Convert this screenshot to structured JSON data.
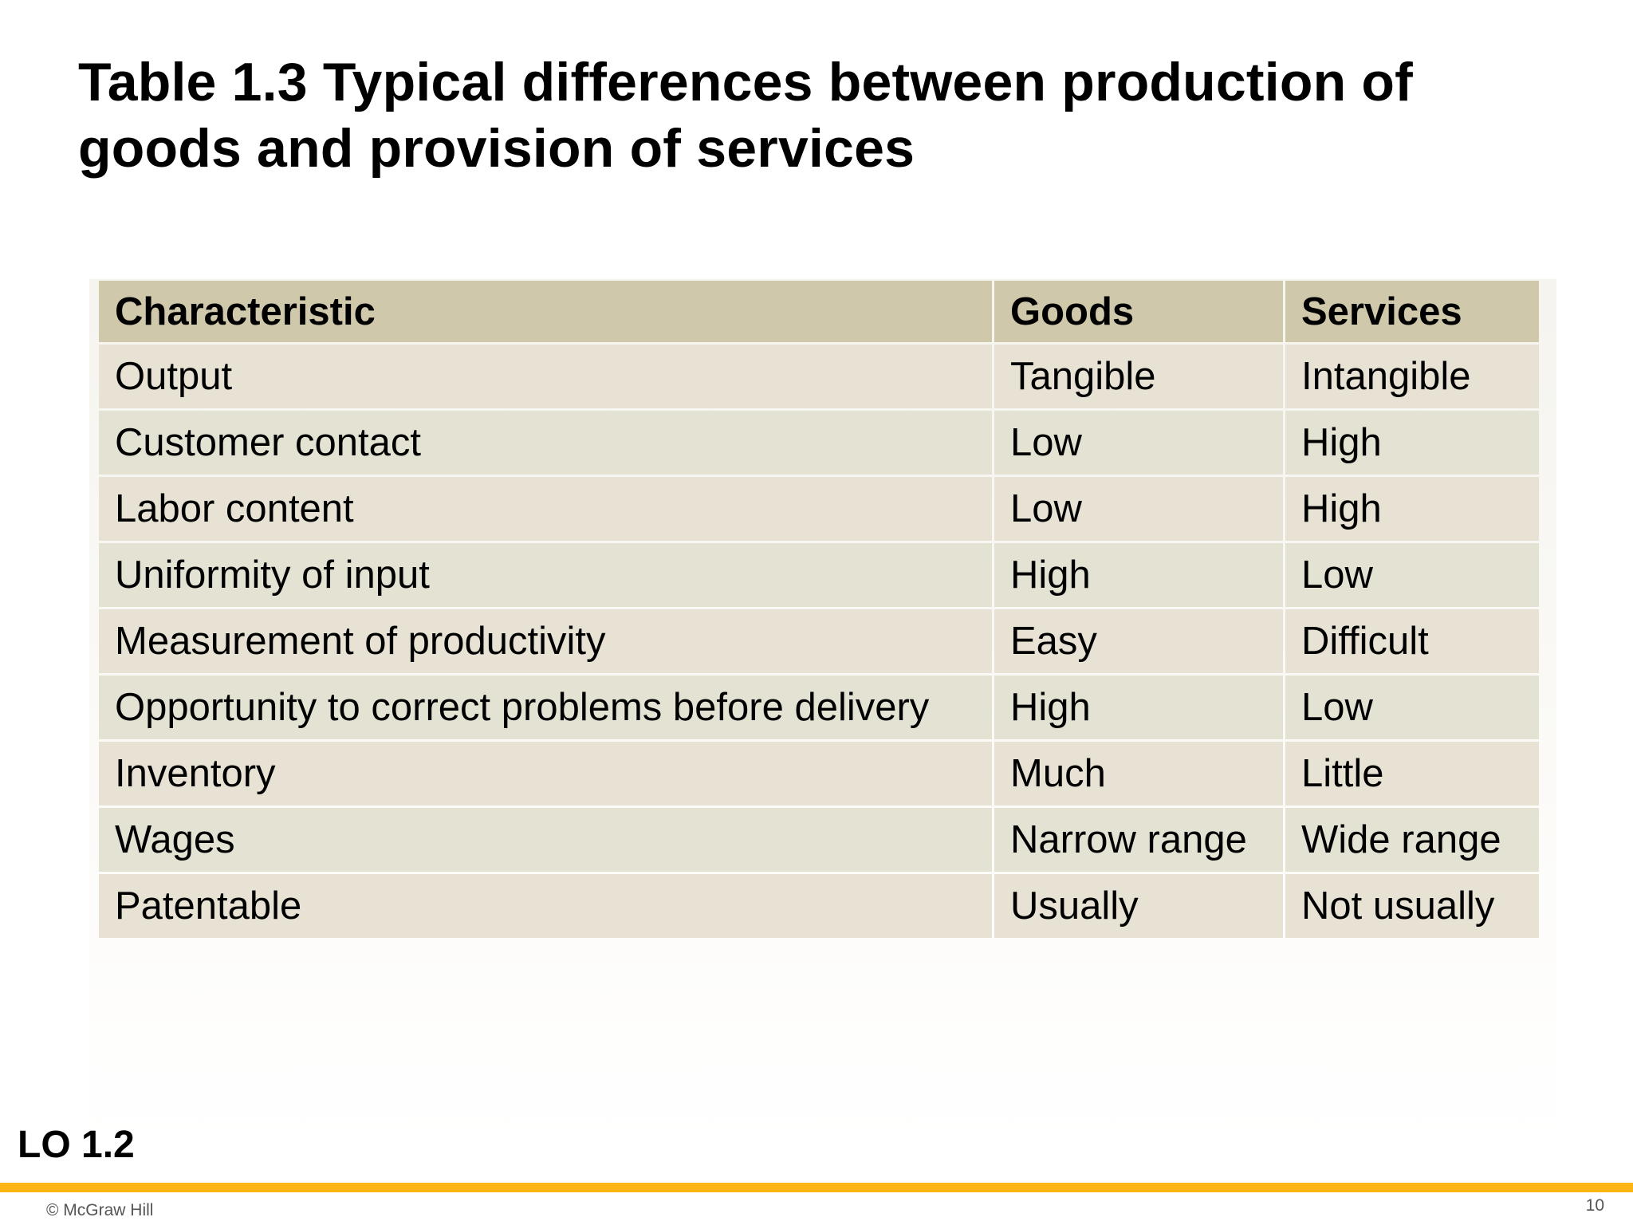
{
  "title": {
    "line1": "Table 1.3 Typical differences between production of",
    "line2": "goods and provision of services"
  },
  "table": {
    "headers": [
      "Characteristic",
      "Goods",
      "Services"
    ],
    "rows": [
      [
        "Output",
        "Tangible",
        "Intangible"
      ],
      [
        "Customer contact",
        "Low",
        "High"
      ],
      [
        "Labor content",
        "Low",
        "High"
      ],
      [
        "Uniformity of input",
        "High",
        "Low"
      ],
      [
        "Measurement of productivity",
        "Easy",
        "Difficult"
      ],
      [
        "Opportunity to correct problems before delivery",
        "High",
        "Low"
      ],
      [
        "Inventory",
        "Much",
        "Little"
      ],
      [
        "Wages",
        "Narrow range",
        "Wide range"
      ],
      [
        "Patentable",
        "Usually",
        "Not usually"
      ]
    ]
  },
  "lo_label": "LO 1.2",
  "footer": {
    "copyright": "© McGraw Hill",
    "page_number": "10"
  },
  "colors": {
    "header_bg": "#d0c8ab",
    "row_bg": "#e6e1d2",
    "footer_bar": "#fdb515"
  }
}
